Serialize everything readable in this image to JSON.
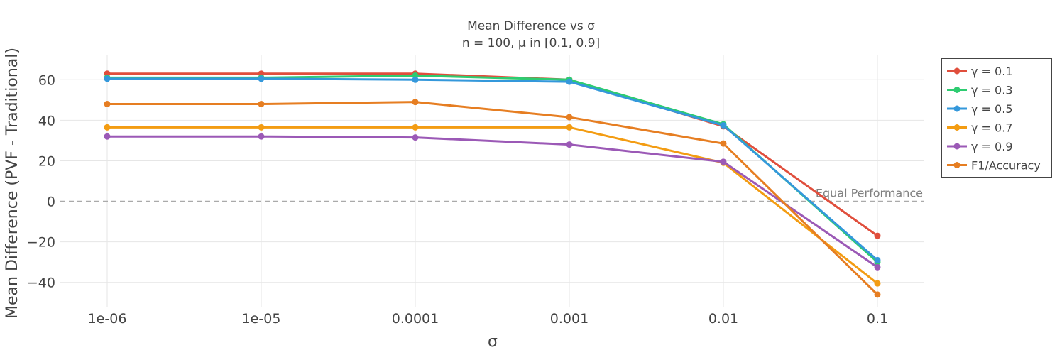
{
  "chart_data": {
    "type": "line",
    "title": "Mean Difference vs σ",
    "subtitle": "n = 100, μ in [0.1, 0.9]",
    "xlabel": "σ",
    "ylabel": "Mean Difference (PVF - Traditional)",
    "x_scale": "log",
    "x": [
      1e-06,
      1e-05,
      0.0001,
      0.001,
      0.01,
      0.1
    ],
    "x_tick_labels": [
      "1e-06",
      "1e-05",
      "0.0001",
      "0.001",
      "0.01",
      "0.1"
    ],
    "ylim": [
      -52,
      72
    ],
    "y_ticks": [
      60,
      40,
      20,
      0,
      -20,
      -40
    ],
    "y_tick_labels": [
      "60",
      "40",
      "20",
      "0",
      "−20",
      "−40"
    ],
    "grid": true,
    "legend_position": "right",
    "series": [
      {
        "name": "γ = 0.1",
        "color": "#e04e3c",
        "values": [
          63.0,
          63.0,
          63.0,
          60.0,
          37.0,
          -17.0
        ]
      },
      {
        "name": "γ = 0.3",
        "color": "#2ecc71",
        "values": [
          61.0,
          61.0,
          62.0,
          60.0,
          38.0,
          -30.0
        ]
      },
      {
        "name": "γ = 0.5",
        "color": "#3498db",
        "values": [
          60.5,
          60.5,
          60.0,
          59.0,
          37.5,
          -29.0
        ]
      },
      {
        "name": "γ = 0.7",
        "color": "#f39c12",
        "values": [
          36.5,
          36.5,
          36.5,
          36.5,
          19.0,
          -40.5
        ]
      },
      {
        "name": "γ = 0.9",
        "color": "#9b59b6",
        "values": [
          32.0,
          32.0,
          31.5,
          28.0,
          19.5,
          -32.5
        ]
      },
      {
        "name": "F1/Accuracy",
        "color": "#e67e22",
        "values": [
          48.0,
          48.0,
          49.0,
          41.5,
          28.5,
          -46.0
        ]
      }
    ],
    "reference_line": {
      "y": 0,
      "label": "Equal Performance",
      "color": "#aaaaaa"
    }
  }
}
